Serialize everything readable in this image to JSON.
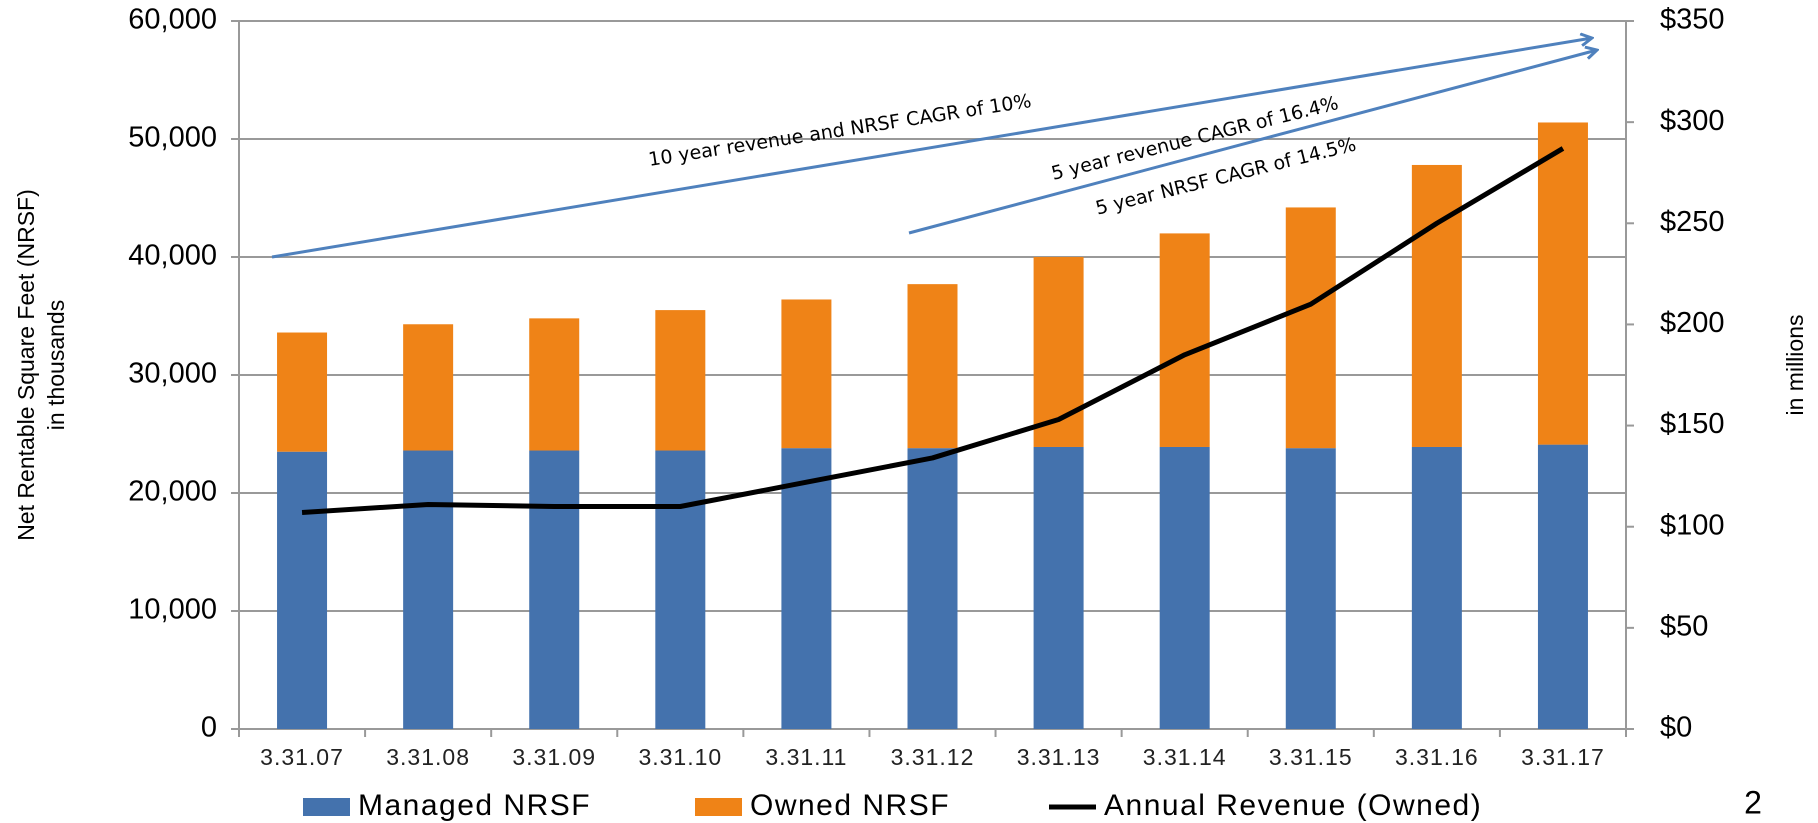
{
  "chart_data": {
    "type": "bar",
    "stacked": true,
    "ylabel": [
      "Net Rentable Square Feet (NRSF)",
      "in thousands"
    ],
    "y2label": "in millions",
    "categories": [
      "3.31.07",
      "3.31.08",
      "3.31.09",
      "3.31.10",
      "3.31.11",
      "3.31.12",
      "3.31.13",
      "3.31.14",
      "3.31.15",
      "3.31.16",
      "3.31.17"
    ],
    "series": [
      {
        "name": "Managed NRSF",
        "color": "#4472ad",
        "values": [
          23500,
          23600,
          23600,
          23600,
          23800,
          23800,
          23900,
          23900,
          23800,
          23900,
          24100
        ]
      },
      {
        "name": "Owned NRSF",
        "color": "#ef8317",
        "values": [
          10100,
          10700,
          11200,
          11900,
          12600,
          13900,
          16100,
          18100,
          20400,
          23900,
          27300
        ]
      },
      {
        "name": "Annual Revenue (Owned)",
        "type": "line",
        "axis": "y2",
        "color": "#000000",
        "values": [
          107,
          111,
          110,
          110,
          122,
          134,
          153,
          185,
          210,
          250,
          287
        ]
      }
    ],
    "ylim": [
      0,
      60000
    ],
    "yticks": [
      0,
      {
        "value": 10000,
        "label": "10,000"
      },
      {
        "value": 20000,
        "label": "20,000"
      },
      {
        "value": 30000,
        "label": "30,000"
      },
      {
        "value": 40000,
        "label": "40,000"
      },
      {
        "value": 50000,
        "label": "50,000"
      },
      {
        "value": 60000,
        "label": "60,000"
      }
    ],
    "y2lim": [
      0,
      350
    ],
    "y2ticks": [
      {
        "value": 0,
        "label": "$0"
      },
      {
        "value": 50,
        "label": "$50"
      },
      {
        "value": 100,
        "label": "$100"
      },
      {
        "value": 150,
        "label": "$150"
      },
      {
        "value": 200,
        "label": "$200"
      },
      {
        "value": 250,
        "label": "$250"
      },
      {
        "value": 300,
        "label": "$300"
      },
      {
        "value": 350,
        "label": "$350"
      }
    ],
    "grid": true,
    "legend": "bottom",
    "annotations": [
      "10 year revenue and NRSF CAGR of 10%",
      "5 year revenue CAGR of 16.4%",
      "5 year NRSF CAGR of 14.5%"
    ]
  },
  "page_number": "2"
}
